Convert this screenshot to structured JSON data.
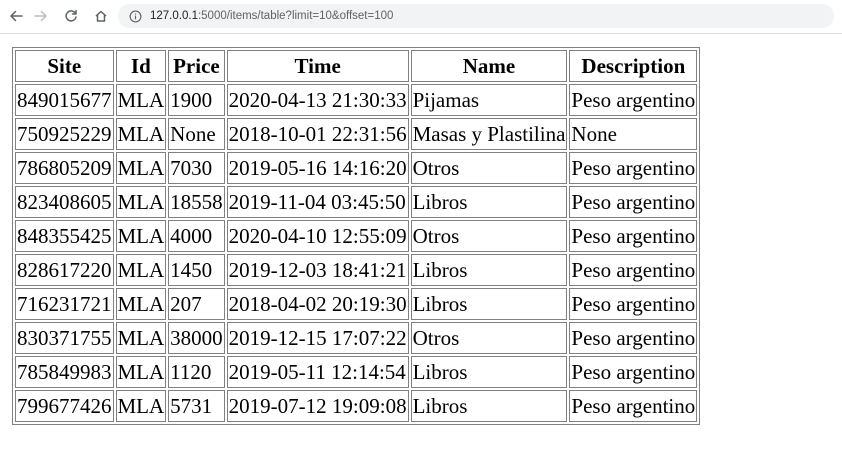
{
  "browser": {
    "url_host": "127.0.0.1",
    "url_rest": ":5000/items/table?limit=10&offset=100"
  },
  "table": {
    "headers": [
      "Site",
      "Id",
      "Price",
      "Time",
      "Name",
      "Description"
    ],
    "rows": [
      [
        "849015677",
        "MLA",
        "1900",
        "2020-04-13 21:30:33",
        "Pijamas",
        "Peso argentino"
      ],
      [
        "750925229",
        "MLA",
        "None",
        "2018-10-01 22:31:56",
        "Masas y Plastilina",
        "None"
      ],
      [
        "786805209",
        "MLA",
        "7030",
        "2019-05-16 14:16:20",
        "Otros",
        "Peso argentino"
      ],
      [
        "823408605",
        "MLA",
        "18558",
        "2019-11-04 03:45:50",
        "Libros",
        "Peso argentino"
      ],
      [
        "848355425",
        "MLA",
        "4000",
        "2020-04-10 12:55:09",
        "Otros",
        "Peso argentino"
      ],
      [
        "828617220",
        "MLA",
        "1450",
        "2019-12-03 18:41:21",
        "Libros",
        "Peso argentino"
      ],
      [
        "716231721",
        "MLA",
        "207",
        "2018-04-02 20:19:30",
        "Libros",
        "Peso argentino"
      ],
      [
        "830371755",
        "MLA",
        "38000",
        "2019-12-15 17:07:22",
        "Otros",
        "Peso argentino"
      ],
      [
        "785849983",
        "MLA",
        "1120",
        "2019-05-11 12:14:54",
        "Libros",
        "Peso argentino"
      ],
      [
        "799677426",
        "MLA",
        "5731",
        "2019-07-12 19:09:08",
        "Libros",
        "Peso argentino"
      ]
    ]
  }
}
